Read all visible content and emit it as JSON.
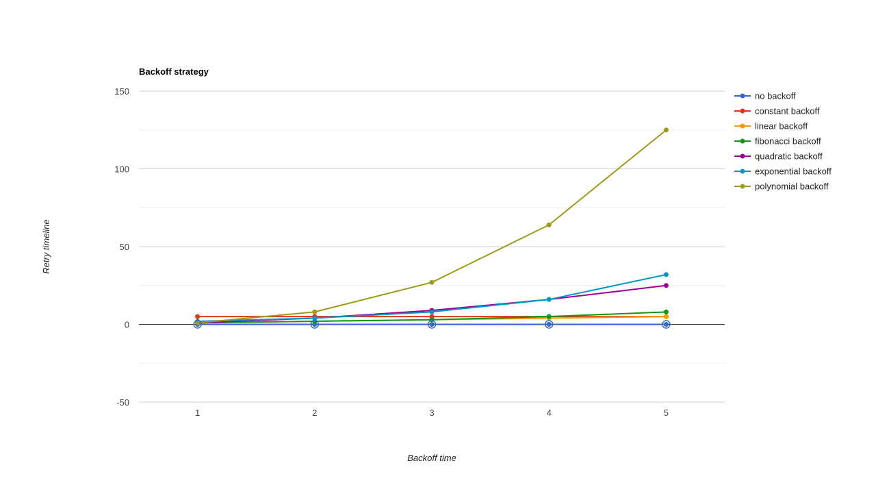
{
  "chart_data": {
    "type": "line",
    "title": "Backoff strategy",
    "xlabel": "Backoff time",
    "ylabel": "Retry timeline",
    "x": [
      1,
      2,
      3,
      4,
      5
    ],
    "xlim": [
      0.5,
      5.5
    ],
    "ylim": [
      -50,
      150
    ],
    "yticks": [
      150,
      100,
      50,
      0,
      -50
    ],
    "grid": true,
    "legend": "right",
    "series": [
      {
        "name": "no backoff",
        "color": "#3366cc",
        "values": [
          0,
          0,
          0,
          0,
          0
        ]
      },
      {
        "name": "constant backoff",
        "color": "#dc3912",
        "values": [
          5,
          5,
          5,
          5,
          5
        ]
      },
      {
        "name": "linear backoff",
        "color": "#ff9900",
        "values": [
          1,
          2,
          3,
          4,
          5
        ]
      },
      {
        "name": "fibonacci backoff",
        "color": "#109618",
        "values": [
          1,
          2,
          3,
          5,
          8
        ]
      },
      {
        "name": "quadratic backoff",
        "color": "#990099",
        "values": [
          1,
          4,
          9,
          16,
          25
        ]
      },
      {
        "name": "exponential backoff",
        "color": "#0099c6",
        "values": [
          2,
          4,
          8,
          16,
          32
        ]
      },
      {
        "name": "polynomial backoff",
        "color": "#9c9c1a",
        "values": [
          1,
          8,
          27,
          64,
          125
        ]
      }
    ]
  }
}
